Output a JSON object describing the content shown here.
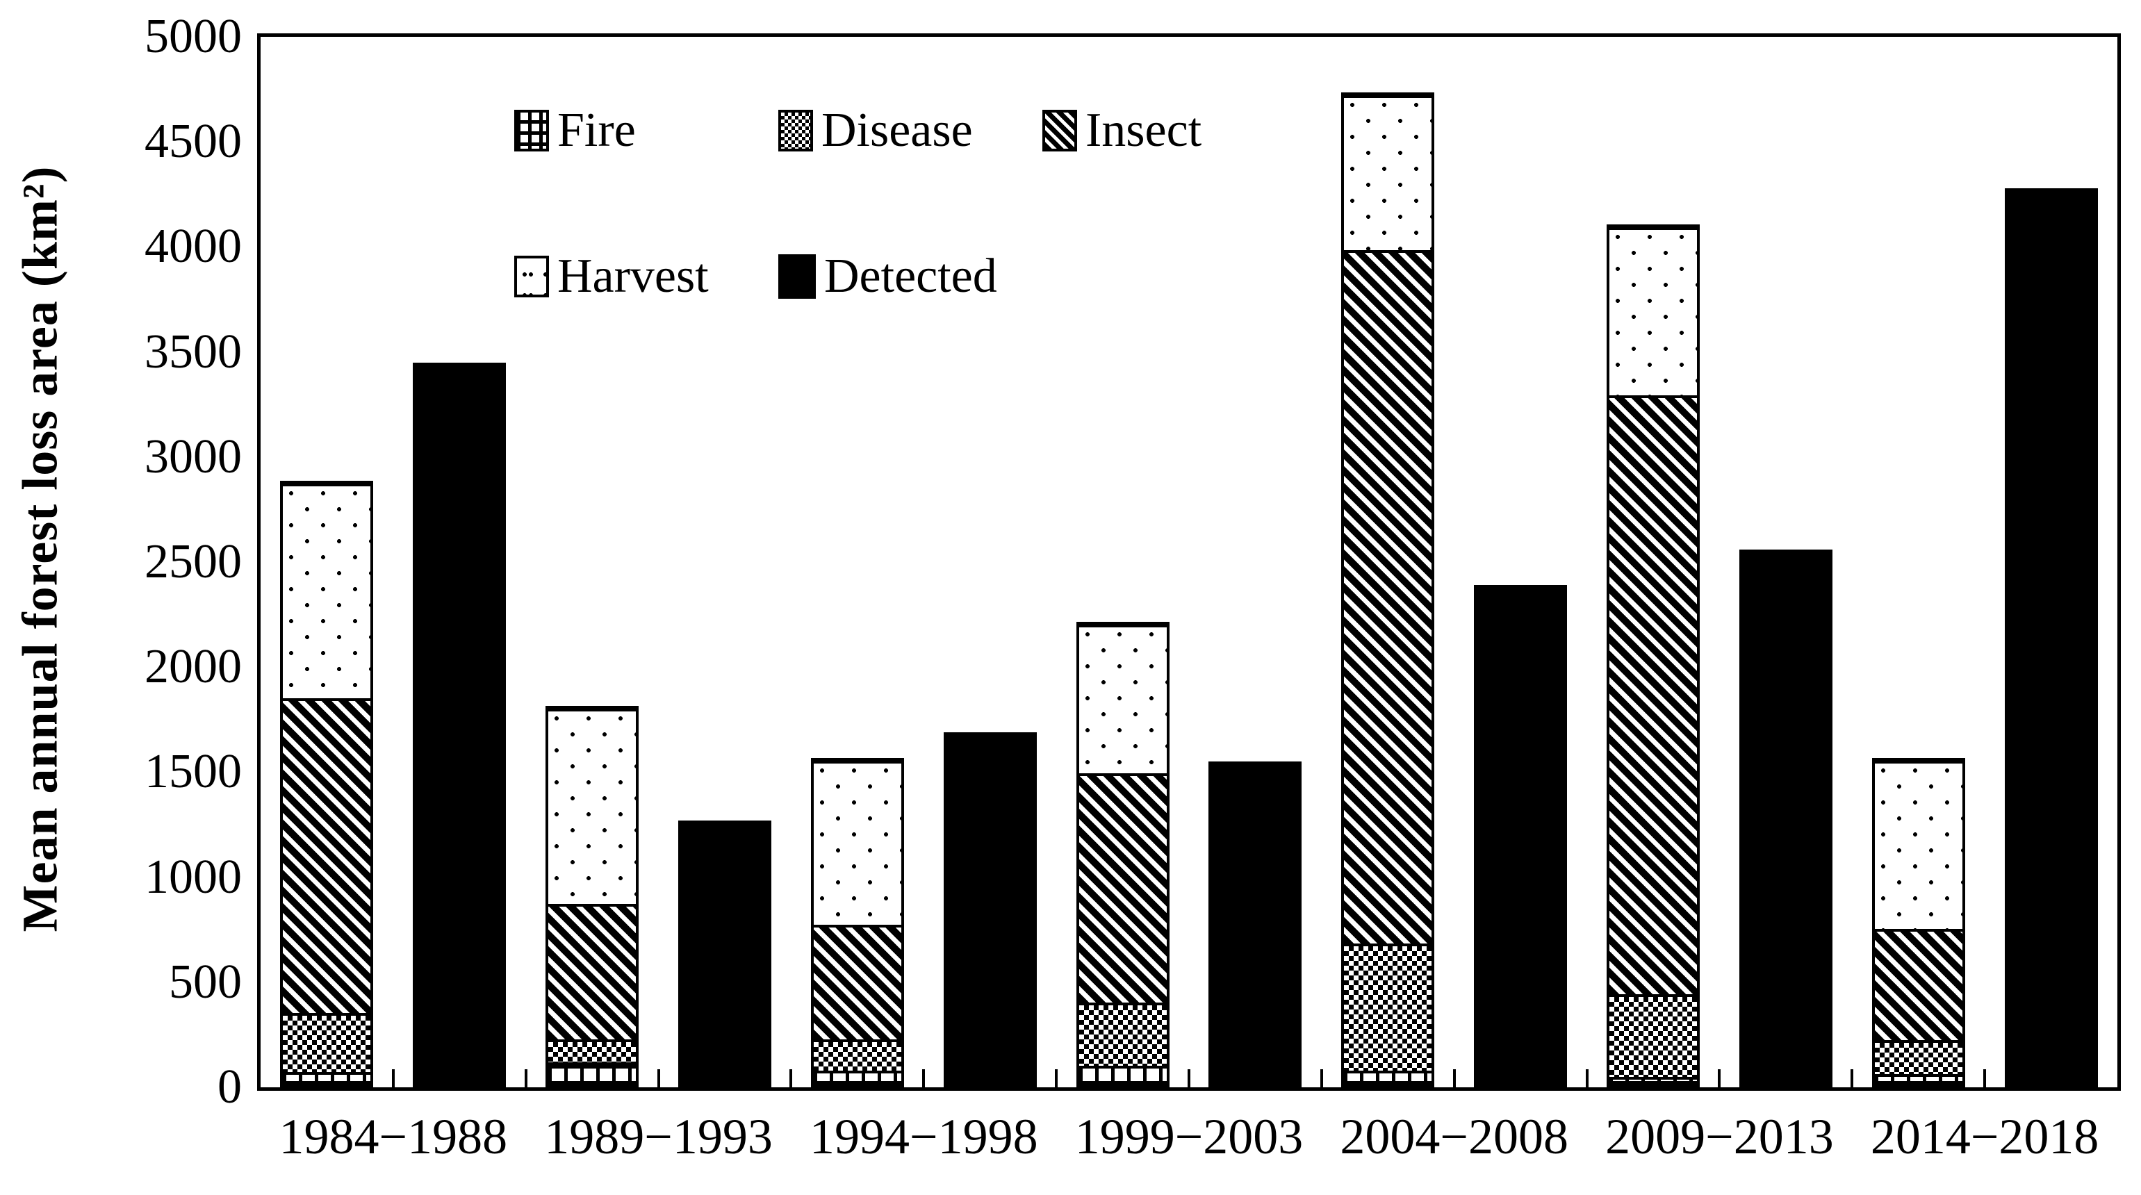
{
  "chart_data": {
    "type": "bar",
    "subtype": "stacked-bars-paired-with-single-bar",
    "title": "",
    "xlabel": "",
    "ylabel": "Mean annual forest loss area (km²)",
    "ylim": [
      0,
      5000
    ],
    "ytick_step": 500,
    "yticks": [
      0,
      500,
      1000,
      1500,
      2000,
      2500,
      3000,
      3500,
      4000,
      4500,
      5000
    ],
    "grid": false,
    "legend_position": "inside-top-left-two-rows",
    "categories": [
      "1984−1988",
      "1989−1993",
      "1994−1998",
      "1999−2003",
      "2004−2008",
      "2009−2013",
      "2014−2018"
    ],
    "stacked_series": [
      {
        "name": "Fire",
        "pattern": "grid-hatch",
        "values": [
          60,
          105,
          65,
          90,
          65,
          35,
          50
        ]
      },
      {
        "name": "Disease",
        "pattern": "small-checkerboard",
        "values": [
          280,
          110,
          150,
          300,
          605,
          395,
          160
        ]
      },
      {
        "name": "Insect",
        "pattern": "diagonal-stripes",
        "values": [
          1500,
          645,
          545,
          1090,
          3300,
          2850,
          530
        ]
      },
      {
        "name": "Harvest",
        "pattern": "sparse-dots",
        "values": [
          1020,
          930,
          780,
          710,
          740,
          800,
          800
        ]
      }
    ],
    "stacked_totals": [
      2860,
      1790,
      1540,
      2190,
      4710,
      4080,
      1540
    ],
    "series": [
      {
        "name": "Detected",
        "pattern": "solid-black",
        "values": [
          3450,
          1270,
          1690,
          1550,
          2390,
          2560,
          4280
        ]
      }
    ],
    "legend": {
      "fire": "Fire",
      "disease": "Disease",
      "insect": "Insect",
      "harvest": "Harvest",
      "detected": "Detected"
    },
    "colors": {
      "foreground": "#000000",
      "background": "#ffffff"
    }
  }
}
